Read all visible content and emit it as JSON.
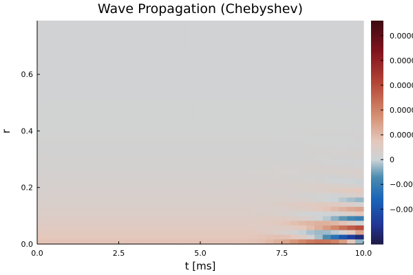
{
  "chart_data": {
    "type": "heatmap",
    "title": "Wave Propagation (Chebyshev)",
    "xlabel": "t [ms]",
    "ylabel": "r",
    "xlim": [
      0.0,
      10.0
    ],
    "ylim": [
      0.0,
      0.79
    ],
    "x_ticks": [
      {
        "value": 0.0,
        "label": "0.0"
      },
      {
        "value": 2.5,
        "label": "2.5"
      },
      {
        "value": 5.0,
        "label": "5.0"
      },
      {
        "value": 7.5,
        "label": "7.5"
      },
      {
        "value": 10.0,
        "label": "10.0"
      }
    ],
    "y_ticks": [
      {
        "value": 0.0,
        "label": "0.0"
      },
      {
        "value": 0.2,
        "label": "0.2"
      },
      {
        "value": 0.4,
        "label": "0.4"
      },
      {
        "value": 0.6,
        "label": "0.6"
      }
    ],
    "colorbar": {
      "colormap": "balance",
      "ticks": [
        {
          "frac": 0.933,
          "label": "0.0000"
        },
        {
          "frac": 0.822,
          "label": "0.0000"
        },
        {
          "frac": 0.711,
          "label": "0.0000"
        },
        {
          "frac": 0.6,
          "label": "0.0000"
        },
        {
          "frac": 0.489,
          "label": "0.0000"
        },
        {
          "frac": 0.378,
          "label": "0"
        },
        {
          "frac": 0.267,
          "label": "−0.000"
        },
        {
          "frac": 0.156,
          "label": "−0.000"
        }
      ]
    },
    "field": {
      "background_level": 0.39,
      "near_axis_level": 0.475,
      "grid_cols": 40,
      "grid_rows": 48,
      "description_level_scale": "0 = min (dark navy), 0.378 = zero, 1 = max (dark maroon)"
    },
    "grid": false
  }
}
